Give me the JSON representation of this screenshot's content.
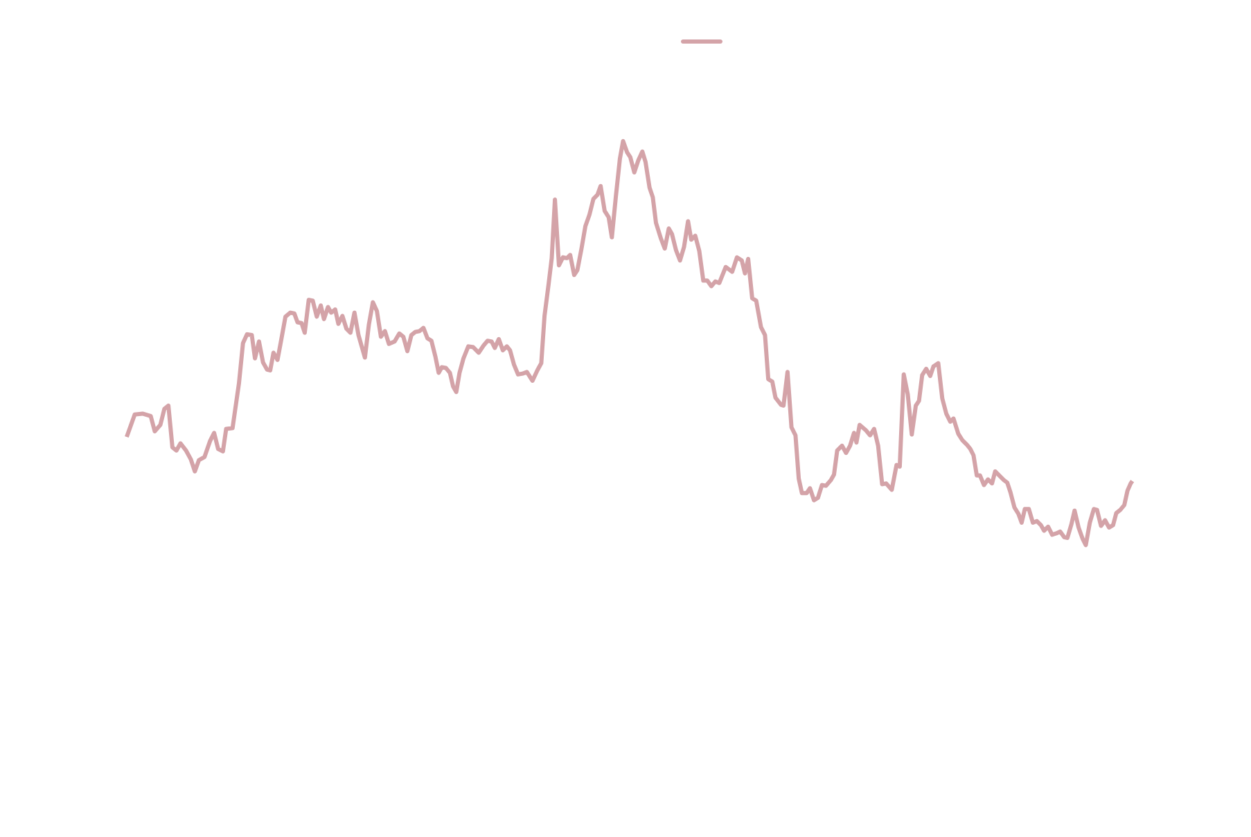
{
  "chart_data": {
    "type": "line",
    "legend": "upper center",
    "xlim": [
      0,
      1560
    ],
    "ylim": [
      0,
      100
    ],
    "series": [
      {
        "color": "#d4a3a8",
        "x": [
          158,
          168,
          178,
          188,
          193,
          200,
          205,
          210,
          215,
          220,
          225,
          232,
          238,
          243,
          248,
          255,
          262,
          267,
          272,
          278,
          282,
          290,
          298,
          303,
          308,
          314,
          318,
          323,
          328,
          333,
          337,
          341,
          346,
          351,
          356,
          362,
          367,
          371,
          376,
          380,
          385,
          390,
          395,
          400,
          404,
          409,
          413,
          418,
          422,
          427,
          432,
          437,
          442,
          447,
          455,
          460,
          465,
          470,
          475,
          480,
          485,
          492,
          498,
          503,
          508,
          513,
          518,
          523,
          528,
          533,
          538,
          543,
          547,
          551,
          556,
          561,
          565,
          569,
          573,
          578,
          584,
          590,
          597,
          603,
          608,
          613,
          617,
          622,
          627,
          632,
          636,
          641,
          646,
          652,
          657,
          664,
          670,
          675,
          679,
          684,
          688,
          692,
          697,
          702,
          707,
          711,
          716,
          720,
          725,
          730,
          735,
          740,
          745,
          749,
          754,
          759,
          763,
          768,
          773,
          777,
          782,
          786,
          791,
          796,
          801,
          805,
          810,
          814,
          818,
          824,
          829,
          834,
          838,
          843,
          848,
          853,
          858,
          862,
          867,
          872,
          877,
          882,
          887,
          892,
          897,
          905,
          913,
          919,
          925,
          929,
          933,
          938,
          943,
          949,
          954,
          958,
          963,
          967,
          974,
          977,
          982,
          987,
          992,
          996,
          1000,
          1006,
          1010,
          1015,
          1020,
          1025,
          1030,
          1036,
          1040,
          1044,
          1050,
          1055,
          1060,
          1065,
          1068,
          1072,
          1080,
          1085,
          1090,
          1095,
          1100,
          1105,
          1112,
          1118,
          1122,
          1127,
          1132,
          1137,
          1142,
          1146,
          1150,
          1155,
          1160,
          1164,
          1170,
          1175,
          1180,
          1185,
          1189,
          1195,
          1200,
          1206,
          1210,
          1214,
          1218,
          1222,
          1227,
          1232,
          1237,
          1241,
          1247,
          1252,
          1256,
          1260,
          1265,
          1270,
          1274,
          1278,
          1283,
          1288,
          1293,
          1298,
          1302,
          1307,
          1312,
          1318,
          1322,
          1327,
          1331,
          1336,
          1340,
          1345,
          1350,
          1354,
          1359,
          1364,
          1368,
          1373,
          1378,
          1383,
          1388,
          1392,
          1397,
          1402,
          1406,
          1410,
          1412
        ],
        "values": [
          45.5,
          48.3,
          48.4,
          48.1,
          46.2,
          47,
          49,
          49.4,
          44.2,
          43.8,
          44.7,
          43.8,
          42.7,
          41.2,
          42.6,
          43,
          45,
          46,
          44,
          43.7,
          46.5,
          46.6,
          52.2,
          57.2,
          58.3,
          58.2,
          55.3,
          57.4,
          54.8,
          53.9,
          53.8,
          56,
          55.1,
          57.8,
          60.5,
          61,
          60.9,
          59.8,
          59.7,
          58.5,
          62.6,
          62.5,
          60.5,
          61.9,
          60.2,
          61.7,
          61,
          61.4,
          59.6,
          60.6,
          59,
          58.5,
          61,
          58.2,
          55.4,
          59.5,
          62.3,
          61.2,
          58,
          58.7,
          57.1,
          57.4,
          58.4,
          58,
          56.2,
          58.2,
          58.6,
          58.7,
          59.1,
          57.8,
          57.5,
          55.5,
          53.5,
          54.2,
          54.1,
          53.5,
          51.8,
          51.1,
          53.5,
          55.3,
          56.8,
          56.7,
          56,
          56.9,
          57.5,
          57.4,
          56.6,
          57.7,
          56.3,
          56.8,
          56.3,
          54.5,
          53.3,
          53.4,
          53.6,
          52.5,
          53.8,
          54.7,
          60.6,
          64.5,
          67.8,
          75.1,
          66.9,
          67.9,
          67.8,
          68.2,
          65.7,
          66.3,
          68.9,
          71.8,
          73.2,
          75.2,
          75.7,
          76.8,
          73.7,
          72.9,
          70.4,
          75.5,
          80.2,
          82.4,
          81,
          80.4,
          78.5,
          80,
          81.1,
          79.8,
          76.6,
          75.4,
          72.2,
          70.3,
          69,
          71.5,
          70.8,
          68.8,
          67.5,
          69.2,
          72.4,
          70.1,
          70.6,
          68.7,
          65,
          65,
          64.3,
          64.9,
          64.7,
          66.7,
          66.1,
          67.9,
          67.5,
          65.9,
          67.7,
          62.8,
          62.5,
          59.2,
          58.2,
          52.7,
          52.4,
          50.4,
          49.5,
          49.4,
          53.6,
          46.7,
          45.7,
          40.3,
          38.5,
          38.5,
          39.1,
          37.6,
          37.9,
          39.5,
          39.4,
          40.1,
          40.8,
          43.8,
          44.4,
          43.5,
          44.4,
          46,
          44.8,
          47,
          46.3,
          45.7,
          46.5,
          44.4,
          39.6,
          39.7,
          38.9,
          42,
          41.8,
          53.3,
          50.8,
          45.8,
          49.4,
          50,
          53.2,
          54,
          53.1,
          54.3,
          54.7,
          50.3,
          48.4,
          47.4,
          47.8,
          45.9,
          45.1,
          44.5,
          44,
          43.2,
          40.7,
          40.7,
          39.5,
          40.2,
          39.7,
          41.2,
          40.6,
          40.1,
          39.8,
          38.6,
          36.7,
          35.9,
          34.8,
          36.5,
          36.5,
          34.8,
          35,
          34.5,
          33.8,
          34.3,
          33.3,
          33.5,
          33.7,
          33,
          32.9,
          34.6,
          36.3,
          34.2,
          32.8,
          32,
          34.8,
          36.5,
          36.4,
          34.4,
          35.1,
          34.2,
          34.5,
          36,
          36.4,
          37,
          38.8,
          39.7,
          40
        ]
      }
    ]
  }
}
